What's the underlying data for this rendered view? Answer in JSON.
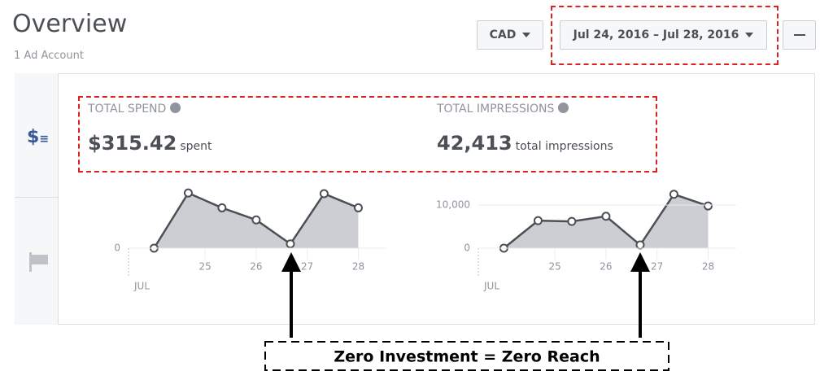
{
  "header": {
    "title": "Overview",
    "subtitle": "1 Ad Account",
    "currency": "CAD",
    "date_range": "Jul 24, 2016 – Jul 28, 2016"
  },
  "metrics": [
    {
      "label": "TOTAL SPEND",
      "value": "$315.42",
      "unit": "spent"
    },
    {
      "label": "TOTAL IMPRESSIONS",
      "value": "42,413",
      "unit": "total impressions"
    }
  ],
  "chart_data": [
    {
      "type": "area",
      "x": [
        24,
        24.67,
        25.33,
        26,
        26.67,
        27.33,
        28
      ],
      "values": [
        0,
        78,
        57,
        40,
        6,
        77,
        57
      ],
      "xlim": [
        23.5,
        28.55
      ],
      "xticks": [
        25,
        26,
        27,
        28
      ],
      "x_label": "JUL",
      "ylim": [
        0,
        92
      ],
      "yticks": [
        0
      ],
      "color": "#ccced3",
      "line_color": "#4b4f56"
    },
    {
      "type": "area",
      "x": [
        24,
        24.67,
        25.33,
        26,
        26.67,
        27.33,
        28
      ],
      "values": [
        0,
        6400,
        6200,
        7400,
        750,
        12500,
        9800
      ],
      "xlim": [
        23.5,
        28.55
      ],
      "xticks": [
        25,
        26,
        27,
        28
      ],
      "x_label": "JUL",
      "ylim": [
        0,
        15100
      ],
      "yticks": [
        0,
        {
          "value": 10000,
          "label": "10,000"
        }
      ],
      "color": "#ccced3",
      "line_color": "#4b4f56"
    }
  ],
  "annotation": "Zero Investment = Zero Reach"
}
